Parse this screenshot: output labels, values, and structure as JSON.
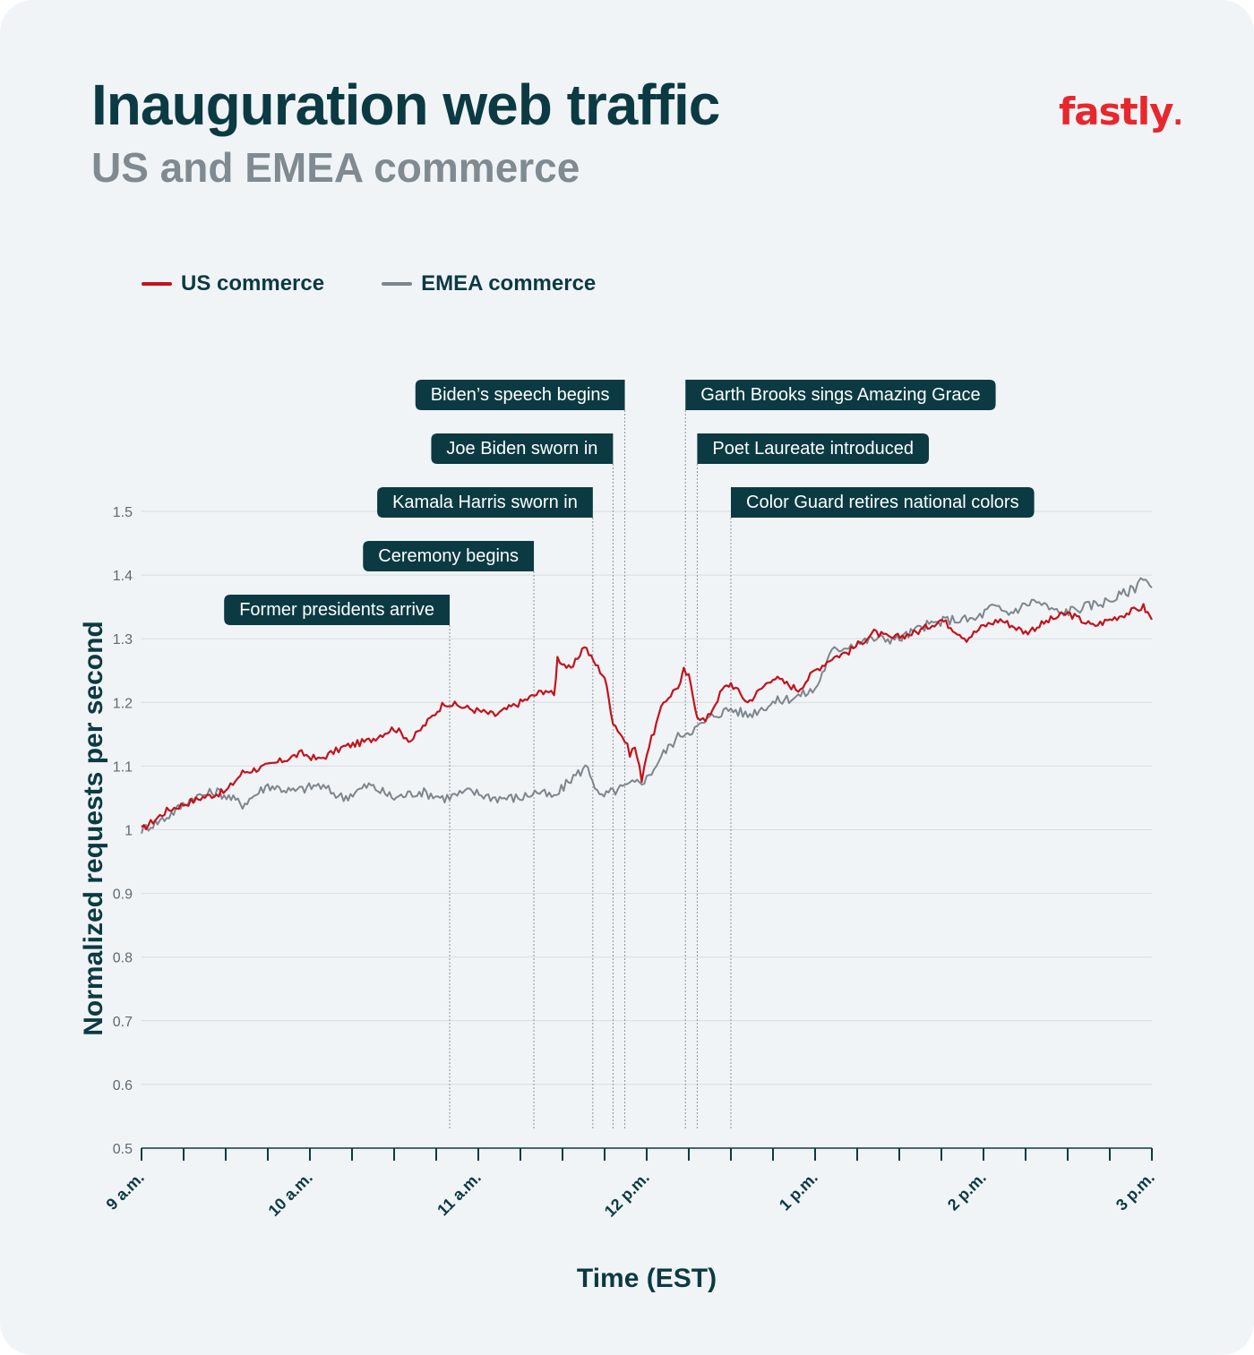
{
  "header": {
    "title": "Inauguration web traffic",
    "subtitle": "US and EMEA commerce",
    "logo_text": "fastly",
    "logo_dot": "."
  },
  "colors": {
    "background": "#f1f4f7",
    "us": "#c4121c",
    "emea": "#7d868d",
    "annotation": "#0b3a43",
    "text": "#0b3a43",
    "logo": "#e8272c"
  },
  "chart_data": {
    "type": "line",
    "title": "Inauguration web traffic",
    "subtitle": "US and EMEA commerce",
    "xlabel": "Time (EST)",
    "ylabel": "Normalized requests per second",
    "ylim": [
      0.5,
      1.5
    ],
    "yticks": [
      "0.5",
      "0.6",
      "0.7",
      "0.8",
      "0.9",
      "1",
      "1.1",
      "1.2",
      "1.3",
      "1.4",
      "1.5"
    ],
    "xlim_hours": [
      9,
      15
    ],
    "xticks": [
      {
        "hour": 9,
        "label": "9 a.m."
      },
      {
        "hour": 10,
        "label": "10 a.m."
      },
      {
        "hour": 11,
        "label": "11 a.m."
      },
      {
        "hour": 12,
        "label": "12 p.m."
      },
      {
        "hour": 13,
        "label": "1 p.m."
      },
      {
        "hour": 14,
        "label": "2 p.m."
      },
      {
        "hour": 15,
        "label": "3 p.m."
      }
    ],
    "grid": true,
    "legend_position": "top-left",
    "series": [
      {
        "name": "US commerce",
        "color": "#c4121c",
        "x_hours": [
          9.0,
          9.15,
          9.25,
          9.35,
          9.5,
          9.6,
          9.75,
          9.85,
          9.95,
          10.05,
          10.2,
          10.35,
          10.5,
          10.6,
          10.7,
          10.8,
          10.95,
          11.1,
          11.25,
          11.4,
          11.45,
          11.47,
          11.55,
          11.63,
          11.67,
          11.75,
          11.8,
          11.87,
          11.9,
          11.93,
          11.97,
          12.0,
          12.1,
          12.2,
          12.22,
          12.25,
          12.3,
          12.35,
          12.45,
          12.5,
          12.6,
          12.75,
          12.9,
          13.0,
          13.1,
          13.2,
          13.35,
          13.45,
          13.6,
          13.75,
          13.9,
          14.0,
          14.1,
          14.25,
          14.4,
          14.5,
          14.65,
          14.85,
          14.95,
          15.0
        ],
        "values": [
          1.0,
          1.03,
          1.04,
          1.05,
          1.06,
          1.09,
          1.1,
          1.11,
          1.12,
          1.11,
          1.13,
          1.14,
          1.16,
          1.14,
          1.17,
          1.2,
          1.19,
          1.18,
          1.2,
          1.22,
          1.21,
          1.27,
          1.25,
          1.29,
          1.27,
          1.24,
          1.17,
          1.14,
          1.12,
          1.13,
          1.08,
          1.12,
          1.2,
          1.23,
          1.25,
          1.24,
          1.18,
          1.17,
          1.22,
          1.23,
          1.2,
          1.24,
          1.22,
          1.25,
          1.27,
          1.28,
          1.31,
          1.3,
          1.31,
          1.33,
          1.3,
          1.32,
          1.33,
          1.31,
          1.33,
          1.34,
          1.32,
          1.34,
          1.35,
          1.33
        ]
      },
      {
        "name": "EMEA commerce",
        "color": "#7d868d",
        "x_hours": [
          9.0,
          9.15,
          9.3,
          9.45,
          9.6,
          9.75,
          9.9,
          10.05,
          10.2,
          10.35,
          10.5,
          10.65,
          10.8,
          10.95,
          11.1,
          11.25,
          11.35,
          11.45,
          11.55,
          11.65,
          11.72,
          11.8,
          11.9,
          12.0,
          12.1,
          12.2,
          12.3,
          12.4,
          12.5,
          12.6,
          12.75,
          12.9,
          13.0,
          13.1,
          13.2,
          13.35,
          13.5,
          13.65,
          13.8,
          13.95,
          14.05,
          14.15,
          14.3,
          14.45,
          14.6,
          14.75,
          14.9,
          14.95,
          15.0
        ],
        "values": [
          1.0,
          1.02,
          1.05,
          1.06,
          1.04,
          1.07,
          1.06,
          1.07,
          1.05,
          1.07,
          1.05,
          1.06,
          1.05,
          1.06,
          1.05,
          1.05,
          1.06,
          1.05,
          1.08,
          1.1,
          1.05,
          1.06,
          1.07,
          1.08,
          1.12,
          1.15,
          1.16,
          1.18,
          1.19,
          1.18,
          1.2,
          1.21,
          1.22,
          1.28,
          1.29,
          1.3,
          1.3,
          1.32,
          1.33,
          1.33,
          1.35,
          1.34,
          1.36,
          1.34,
          1.35,
          1.36,
          1.38,
          1.4,
          1.38
        ]
      }
    ],
    "annotations": [
      {
        "label": "Former presidents arrive",
        "hour": 10.83,
        "row": 5
      },
      {
        "label": "Ceremony begins",
        "hour": 11.33,
        "row": 4
      },
      {
        "label": "Kamala Harris sworn in",
        "hour": 11.68,
        "row": 3
      },
      {
        "label": "Joe Biden sworn in",
        "hour": 11.8,
        "row": 2
      },
      {
        "label": "Biden’s speech begins",
        "hour": 11.87,
        "row": 1
      },
      {
        "label": "Garth Brooks sings Amazing Grace",
        "hour": 12.23,
        "row": 1
      },
      {
        "label": "Poet Laureate introduced",
        "hour": 12.3,
        "row": 2
      },
      {
        "label": "Color Guard retires national colors",
        "hour": 12.5,
        "row": 3
      }
    ]
  }
}
